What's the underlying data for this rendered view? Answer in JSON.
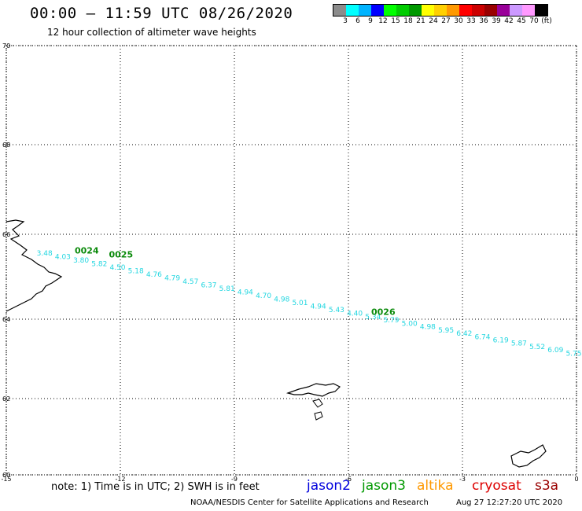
{
  "header": {
    "title": "00:00 – 11:59 UTC 08/26/2020",
    "subtitle": "12 hour collection of altimeter wave heights"
  },
  "colorbar": {
    "colors": [
      "#8c8c8c",
      "#00ffff",
      "#00b4ff",
      "#0000ff",
      "#00ff00",
      "#00cc00",
      "#009900",
      "#ffff00",
      "#ffd000",
      "#ff9900",
      "#ff0000",
      "#cc0000",
      "#990000",
      "#990099",
      "#cc99ff",
      "#ff99ff",
      "#000000"
    ],
    "labels": [
      "3",
      "6",
      "9",
      "12",
      "15",
      "18",
      "21",
      "24",
      "27",
      "30",
      "33",
      "36",
      "39",
      "42",
      "45",
      "70",
      "(ft)"
    ]
  },
  "map": {
    "lon_range": [
      -15,
      0
    ],
    "lat_range": [
      60,
      70
    ],
    "x_tick_labels": [
      "-15",
      "-12",
      "-9",
      "-6",
      "-3",
      "0"
    ],
    "y_tick_labels": [
      "70",
      "68",
      "66",
      "64",
      "62",
      "60"
    ],
    "pass_labels": [
      "0024",
      "0025",
      "0026"
    ],
    "wave_heights": [
      "3.48",
      "4.03",
      "3.80",
      "5.82",
      "4.50",
      "5.18",
      "4.76",
      "4.79",
      "4.57",
      "6.37",
      "5.81",
      "4.94",
      "4.70",
      "4.98",
      "5.01",
      "4.94",
      "5.43",
      "4.40",
      "5.34",
      "5.79",
      "5.00",
      "4.98",
      "5.95",
      "6.42",
      "6.74",
      "6.19",
      "5.87",
      "5.52",
      "6.09",
      "5.75",
      "5.3"
    ]
  },
  "footer": {
    "note": "note:  1) Time is in UTC;  2) SWH is in feet",
    "legend": [
      {
        "name": "jason2",
        "color": "#0000dd"
      },
      {
        "name": "jason3",
        "color": "#009900"
      },
      {
        "name": "altika",
        "color": "#ff9900"
      },
      {
        "name": "cryosat",
        "color": "#dd0000"
      },
      {
        "name": "s3a",
        "color": "#990000"
      }
    ],
    "credit": "NOAA/NESDIS Center for Satellite Applications and Research",
    "generated": "Aug 27 12:27:20 UTC 2020"
  }
}
